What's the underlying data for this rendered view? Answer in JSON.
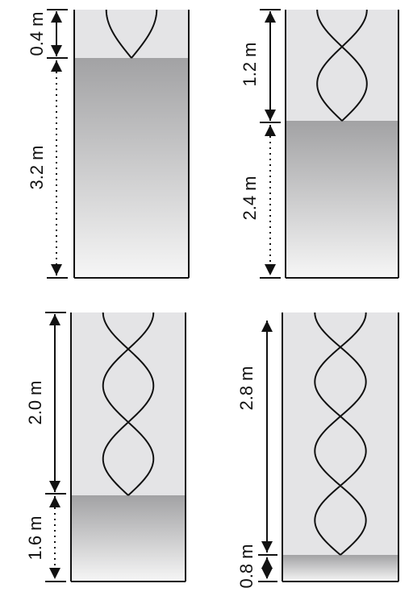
{
  "figure": {
    "panels": [
      {
        "id": "top-left",
        "air_column_label": "0.4 m",
        "liquid_column_label": "3.2 m",
        "air_column_m": 0.4,
        "liquid_column_m": 3.2,
        "standing_wave_loops": 0.5
      },
      {
        "id": "top-right",
        "air_column_label": "1.2 m",
        "liquid_column_label": "2.4 m",
        "air_column_m": 1.2,
        "liquid_column_m": 2.4,
        "standing_wave_loops": 1.5
      },
      {
        "id": "bottom-left",
        "air_column_label": "2.0 m",
        "liquid_column_label": "1.6 m",
        "air_column_m": 2.0,
        "liquid_column_m": 1.6,
        "standing_wave_loops": 2.5
      },
      {
        "id": "bottom-right",
        "air_column_label": "2.8 m",
        "liquid_column_label": "0.8 m",
        "air_column_m": 2.8,
        "liquid_column_m": 0.8,
        "standing_wave_loops": 3.5
      }
    ],
    "colors": {
      "outline": "#111111",
      "air": "#e4e4e6",
      "liquid_top": "#a2a2a4",
      "liquid_bottom": "#f6f6f6",
      "background": "#ffffff"
    }
  }
}
